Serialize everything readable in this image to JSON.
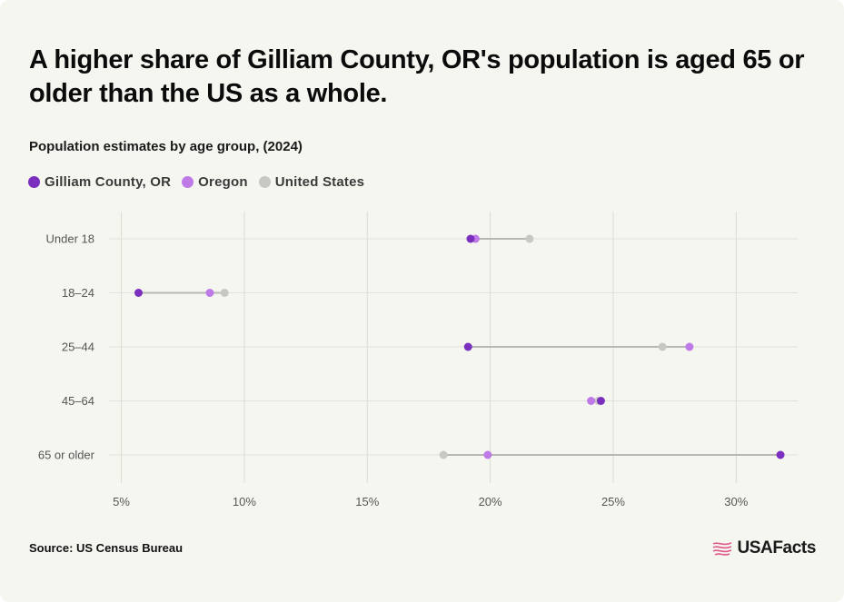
{
  "title": "A higher share of Gilliam County, OR's population is aged 65 or older than the US as a whole.",
  "subtitle": "Population estimates by age group, (2024)",
  "source": "Source: US Census Bureau",
  "brand": "USAFacts",
  "colors": {
    "background": "#f6f6f1",
    "gilliam": "#7b2fbe",
    "oregon": "#be7ae6",
    "us": "#c8c8c2",
    "connector": "#b8b8b2",
    "brand_mark": "#e0578a"
  },
  "chart_data": {
    "type": "dot-range",
    "title": "A higher share of Gilliam County, OR's population is aged 65 or older than the US as a whole.",
    "subtitle": "Population estimates by age group, (2024)",
    "xlabel": "",
    "ylabel": "",
    "categories": [
      "Under 18",
      "18–24",
      "25–44",
      "45–64",
      "65 or older"
    ],
    "series": [
      {
        "name": "Gilliam County, OR",
        "color": "#7b2fbe",
        "values": [
          19.2,
          5.7,
          19.1,
          24.5,
          31.8
        ]
      },
      {
        "name": "Oregon",
        "color": "#be7ae6",
        "values": [
          19.4,
          8.6,
          28.1,
          24.1,
          19.9
        ]
      },
      {
        "name": "United States",
        "color": "#c8c8c2",
        "values": [
          21.6,
          9.2,
          27.0,
          24.4,
          18.1
        ]
      }
    ],
    "x_ticks": [
      5,
      10,
      15,
      20,
      25,
      30
    ],
    "x_tick_labels": [
      "5%",
      "10%",
      "15%",
      "20%",
      "25%",
      "30%"
    ],
    "xlim": [
      4.5,
      32.5
    ],
    "grid": true,
    "legend_position": "top-left"
  }
}
